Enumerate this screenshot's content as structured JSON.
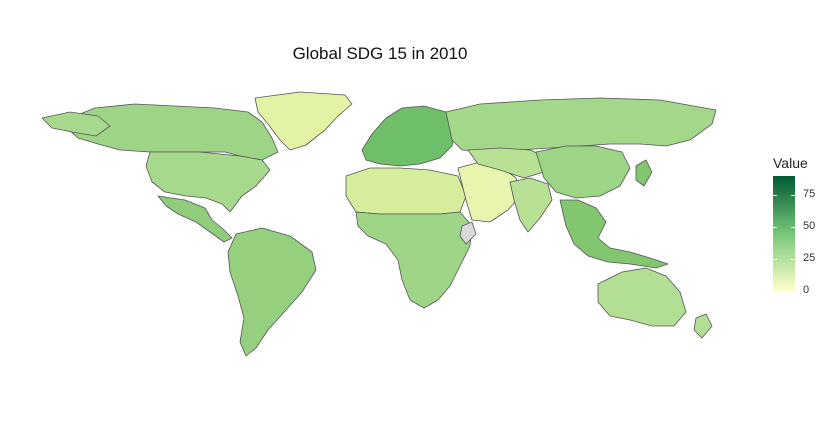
{
  "title": "Global SDG 15 in 2010",
  "legend": {
    "title": "Value",
    "ticks": [
      "75",
      "50",
      "25",
      "0"
    ],
    "tick_values": [
      75,
      50,
      25,
      0
    ],
    "range": [
      0,
      90
    ],
    "colors": {
      "low": "#ffffcc",
      "mid": "#78c679",
      "high": "#005a32"
    }
  },
  "map_colors": {
    "border": "#555555",
    "greenland": "#e2f3a6",
    "north_america": "#a6d98c",
    "canada": "#9ed486",
    "latin_america": "#8fcc7c",
    "south_america": "#95d07f",
    "europe": "#6fbf6a",
    "russia": "#a3d78a",
    "africa_north": "#d6ee9c",
    "africa_central": "#9ed587",
    "middle_east": "#e8f5ae",
    "asia": "#b8e196",
    "china": "#9ed486",
    "southeast_asia": "#82c76f",
    "oceania": "#b3df94",
    "no_data": "#d9d9d9"
  }
}
